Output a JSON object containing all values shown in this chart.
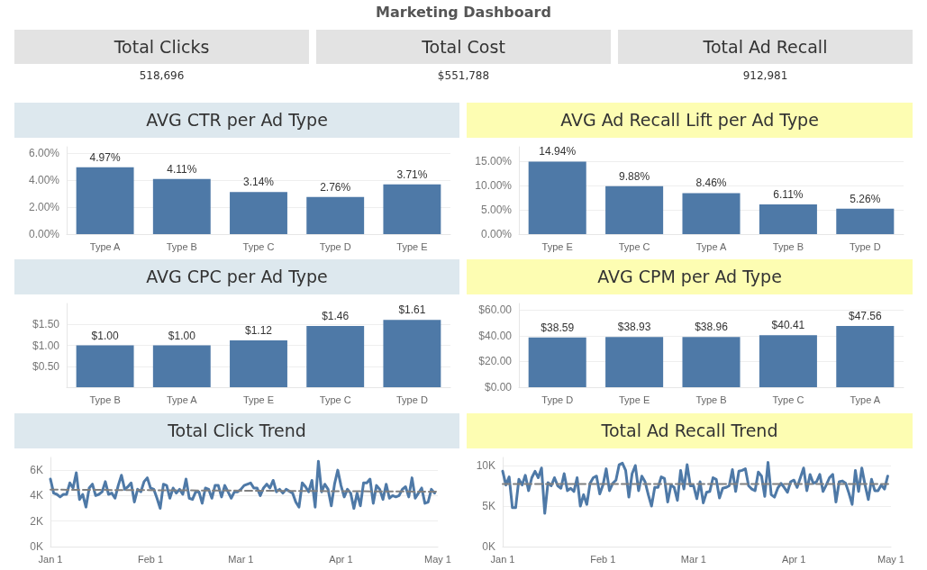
{
  "chart_data": [
    {
      "type": "other",
      "title": "Marketing Dashboard",
      "categories": [
        "Total Clicks",
        "Total Cost",
        "Total Ad Recall"
      ],
      "value_labels": [
        "518,696",
        "$551,788",
        "912,981"
      ]
    },
    {
      "type": "bar",
      "title": "AVG CTR per Ad Type",
      "categories": [
        "Type A",
        "Type B",
        "Type C",
        "Type D",
        "Type E"
      ],
      "values": [
        4.97,
        4.11,
        3.14,
        2.76,
        3.71
      ],
      "value_labels": [
        "4.97%",
        "4.11%",
        "3.14%",
        "2.76%",
        "3.71%"
      ],
      "color": "#4e79a7",
      "ylim": [
        0,
        6.5
      ],
      "yticks": [
        {
          "value": 0,
          "label": "0.00%"
        },
        {
          "value": 2,
          "label": "2.00%"
        },
        {
          "value": 4,
          "label": "4.00%"
        },
        {
          "value": 6,
          "label": "6.00%"
        }
      ],
      "grid": "y"
    },
    {
      "type": "bar",
      "title": "AVG Ad Recall Lift per Ad Type",
      "categories": [
        "Type E",
        "Type C",
        "Type A",
        "Type B",
        "Type D"
      ],
      "values": [
        14.94,
        9.88,
        8.46,
        6.11,
        5.26
      ],
      "value_labels": [
        "14.94%",
        "9.88%",
        "8.46%",
        "6.11%",
        "5.26%"
      ],
      "color": "#4e79a7",
      "ylim": [
        0,
        18
      ],
      "yticks": [
        {
          "value": 0,
          "label": "0.00%"
        },
        {
          "value": 5,
          "label": "5.00%"
        },
        {
          "value": 10,
          "label": "10.00%"
        },
        {
          "value": 15,
          "label": "15.00%"
        }
      ],
      "grid": "y"
    },
    {
      "type": "bar",
      "title": "AVG CPC per Ad Type",
      "categories": [
        "Type B",
        "Type A",
        "Type E",
        "Type C",
        "Type D"
      ],
      "values": [
        1.0,
        1.0,
        1.12,
        1.46,
        1.61
      ],
      "value_labels": [
        "$1.00",
        "$1.00",
        "$1.12",
        "$1.46",
        "$1.61"
      ],
      "color": "#4e79a7",
      "ylim": [
        0,
        2
      ],
      "yticks": [
        {
          "value": 0.5,
          "label": "$0.50"
        },
        {
          "value": 1,
          "label": "$1.00"
        },
        {
          "value": 1.5,
          "label": "$1.50"
        }
      ],
      "grid": "y"
    },
    {
      "type": "bar",
      "title": "AVG CPM per Ad Type",
      "categories": [
        "Type D",
        "Type E",
        "Type B",
        "Type C",
        "Type A"
      ],
      "values": [
        38.59,
        38.93,
        38.96,
        40.41,
        47.56
      ],
      "value_labels": [
        "$38.59",
        "$38.93",
        "$38.96",
        "$40.41",
        "$47.56"
      ],
      "color": "#4e79a7",
      "ylim": [
        0,
        65
      ],
      "yticks": [
        {
          "value": 0,
          "label": "$0.00"
        },
        {
          "value": 20,
          "label": "$20.00"
        },
        {
          "value": 40,
          "label": "$40.00"
        },
        {
          "value": 60,
          "label": "$60.00"
        }
      ],
      "grid": "y"
    },
    {
      "type": "line",
      "title": "Total Click Trend",
      "xlim": [
        "--01-01",
        "--05-01"
      ],
      "xticks": [
        {
          "value": "--01-01",
          "label": "Jan 1"
        },
        {
          "value": "--02-01",
          "label": "Feb 1"
        },
        {
          "value": "--03-01",
          "label": "Mar 1"
        },
        {
          "value": "--04-01",
          "label": "Apr 1"
        },
        {
          "value": "--05-01",
          "label": "May 1"
        }
      ],
      "ylim": [
        0,
        7000
      ],
      "yticks": [
        {
          "value": 0,
          "label": "0K"
        },
        {
          "value": 2000,
          "label": "2K"
        },
        {
          "value": 4000,
          "label": "4K"
        },
        {
          "value": 6000,
          "label": "6K"
        }
      ],
      "grid": "y",
      "series": [
        {
          "color": "#4e79a7",
          "x": [
            "--01-01",
            "--01-02",
            "--01-03",
            "--01-04",
            "--01-05",
            "--01-06",
            "--01-07",
            "--01-08",
            "--01-09",
            "--01-10",
            "--01-11",
            "--01-12",
            "--01-13",
            "--01-14",
            "--01-15",
            "--01-16",
            "--01-17",
            "--01-18",
            "--01-19",
            "--01-20",
            "--01-21",
            "--01-22",
            "--01-23",
            "--01-24",
            "--01-25",
            "--01-26",
            "--01-27",
            "--01-28",
            "--01-29",
            "--01-30",
            "--01-31",
            "--02-01",
            "--02-02",
            "--02-03",
            "--02-04",
            "--02-05",
            "--02-06",
            "--02-07",
            "--02-08",
            "--02-09",
            "--02-10",
            "--02-11",
            "--02-12",
            "--02-13",
            "--02-14",
            "--02-15",
            "--02-16",
            "--02-17",
            "--02-18",
            "--02-19",
            "--02-20",
            "--02-21",
            "--02-22",
            "--02-23",
            "--02-24",
            "--02-25",
            "--02-26",
            "--02-27",
            "--02-28",
            "--03-01",
            "--03-02",
            "--03-04",
            "--03-05",
            "--03-06",
            "--03-07",
            "--03-08",
            "--03-09",
            "--03-10",
            "--03-11",
            "--03-12",
            "--03-13",
            "--03-14",
            "--03-15",
            "--03-17",
            "--03-18",
            "--03-19",
            "--03-20",
            "--03-21",
            "--03-22",
            "--03-23",
            "--03-24",
            "--03-25",
            "--03-26",
            "--03-27",
            "--03-28",
            "--03-29",
            "--03-30",
            "--03-31",
            "--04-01",
            "--04-02",
            "--04-03",
            "--04-04",
            "--04-05",
            "--04-06",
            "--04-07",
            "--04-08",
            "--04-09",
            "--04-10",
            "--04-11",
            "--04-12",
            "--04-13",
            "--04-14",
            "--04-15",
            "--04-16",
            "--04-17",
            "--04-18",
            "--04-19",
            "--04-20",
            "--04-21",
            "--04-22",
            "--04-23",
            "--04-24",
            "--04-25",
            "--04-26",
            "--04-27",
            "--04-28",
            "--04-29",
            "--04-30"
          ],
          "values": [
            5300,
            4200,
            4100,
            3900,
            4100,
            4100,
            5000,
            4600,
            5800,
            3700,
            4100,
            3100,
            4600,
            4900,
            4000,
            4100,
            4300,
            5100,
            4100,
            4200,
            3800,
            4800,
            5600,
            4500,
            4700,
            5000,
            3500,
            4500,
            4300,
            5100,
            5400,
            4600,
            4500,
            3800,
            3000,
            4900,
            4800,
            3800,
            4600,
            4200,
            4500,
            4100,
            5300,
            3800,
            3700,
            4300,
            4300,
            3400,
            4600,
            4500,
            3800,
            4800,
            4800,
            3900,
            4800,
            4300,
            3800,
            4300,
            4300,
            4500,
            4800,
            5000,
            4600,
            4600,
            4000,
            4600,
            4900,
            4600,
            5200,
            4300,
            4500,
            4200,
            4500,
            4200,
            3500,
            3100,
            5000,
            4700,
            4300,
            5200,
            3100,
            6700,
            4300,
            4900,
            4500,
            3200,
            4900,
            6000,
            4800,
            3900,
            4500,
            4200,
            3000,
            4200,
            3200,
            5000,
            5000,
            5300,
            3400,
            4800,
            4500,
            3700,
            4900,
            3800,
            4000,
            3900,
            4000,
            4500,
            4700,
            3900,
            5400,
            3800,
            4200,
            4600,
            3400,
            3500,
            4500,
            4200
          ]
        },
        {
          "type": "line",
          "color": "#808080",
          "line_style": "dashed",
          "x": [
            "--01-01",
            "--05-01"
          ],
          "values": [
            4470,
            4310
          ]
        }
      ]
    },
    {
      "type": "line",
      "title": "Total Ad Recall Trend",
      "xlim": [
        "--01-01",
        "--05-01"
      ],
      "xticks": [
        {
          "value": "--01-01",
          "label": "Jan 1"
        },
        {
          "value": "--02-01",
          "label": "Feb 1"
        },
        {
          "value": "--03-01",
          "label": "Mar 1"
        },
        {
          "value": "--04-01",
          "label": "Apr 1"
        },
        {
          "value": "--05-01",
          "label": "May 1"
        }
      ],
      "ylim": [
        0,
        11000
      ],
      "yticks": [
        {
          "value": 0,
          "label": "0K"
        },
        {
          "value": 5000,
          "label": "5K"
        },
        {
          "value": 10000,
          "label": "10K"
        }
      ],
      "grid": "y",
      "series": [
        {
          "color": "#4e79a7",
          "x": [
            "--01-01",
            "--01-02",
            "--01-03",
            "--01-04",
            "--01-05",
            "--01-06",
            "--01-07",
            "--01-08",
            "--01-09",
            "--01-10",
            "--01-11",
            "--01-12",
            "--01-13",
            "--01-14",
            "--01-15",
            "--01-16",
            "--01-17",
            "--01-18",
            "--01-19",
            "--01-20",
            "--01-21",
            "--01-22",
            "--01-23",
            "--01-24",
            "--01-25",
            "--01-26",
            "--01-27",
            "--01-28",
            "--01-29",
            "--01-30",
            "--01-31",
            "--02-01",
            "--02-02",
            "--02-03",
            "--02-04",
            "--02-05",
            "--02-06",
            "--02-07",
            "--02-08",
            "--02-09",
            "--02-10",
            "--02-11",
            "--02-12",
            "--02-13",
            "--02-14",
            "--02-15",
            "--02-16",
            "--02-17",
            "--02-18",
            "--02-19",
            "--02-20",
            "--02-21",
            "--02-22",
            "--02-23",
            "--02-24",
            "--02-25",
            "--02-26",
            "--02-27",
            "--02-28",
            "--03-01",
            "--03-02",
            "--03-03",
            "--03-04",
            "--03-05",
            "--03-06",
            "--03-07",
            "--03-08",
            "--03-09",
            "--03-10",
            "--03-11",
            "--03-12",
            "--03-13",
            "--03-14",
            "--03-15",
            "--03-16",
            "--03-17",
            "--03-18",
            "--03-19",
            "--03-20",
            "--03-21",
            "--03-22",
            "--03-23",
            "--03-24",
            "--03-25",
            "--03-26",
            "--03-27",
            "--03-28",
            "--03-29",
            "--03-30",
            "--03-31",
            "--04-01",
            "--04-02",
            "--04-03",
            "--04-04",
            "--04-05",
            "--04-06",
            "--04-07",
            "--04-08",
            "--04-09",
            "--04-10",
            "--04-11",
            "--04-12",
            "--04-13",
            "--04-14",
            "--04-15",
            "--04-16",
            "--04-17",
            "--04-18",
            "--04-19",
            "--04-20",
            "--04-21",
            "--04-22",
            "--04-23",
            "--04-24",
            "--04-25",
            "--04-26",
            "--04-27",
            "--04-28",
            "--04-29",
            "--04-30"
          ],
          "values": [
            9300,
            7600,
            8600,
            4800,
            4800,
            8300,
            7600,
            8800,
            6900,
            8500,
            9300,
            8500,
            9700,
            4100,
            7900,
            7500,
            8500,
            7500,
            7200,
            9000,
            6900,
            7200,
            6800,
            8500,
            5000,
            6400,
            5200,
            7800,
            8500,
            8700,
            6500,
            7600,
            9600,
            6900,
            7800,
            8200,
            10100,
            10300,
            9400,
            6100,
            9000,
            10000,
            6900,
            8700,
            8000,
            6400,
            5000,
            7300,
            7300,
            8600,
            8400,
            5500,
            7600,
            7300,
            5700,
            9400,
            7100,
            10100,
            7500,
            7500,
            5900,
            8000,
            5400,
            6700,
            6800,
            8500,
            8300,
            6000,
            7200,
            7300,
            7500,
            9500,
            6800,
            9300,
            9400,
            9600,
            7500,
            7100,
            6900,
            9200,
            8700,
            6200,
            10400,
            6400,
            6100,
            7200,
            7800,
            7300,
            6700,
            8000,
            8200,
            7300,
            8500,
            9700,
            6900,
            8900,
            7800,
            8000,
            8900,
            6800,
            7600,
            8500,
            8900,
            5500,
            8000,
            8100,
            7800,
            6600,
            5200,
            9400,
            6800,
            9700,
            7600,
            5800,
            8300,
            6900,
            6900,
            7600,
            7100,
            8700
          ]
        },
        {
          "type": "line",
          "color": "#808080",
          "line_style": "dashed",
          "x": [
            "--01-01",
            "--05-01"
          ],
          "values": [
            7710,
            7710
          ]
        }
      ]
    }
  ]
}
